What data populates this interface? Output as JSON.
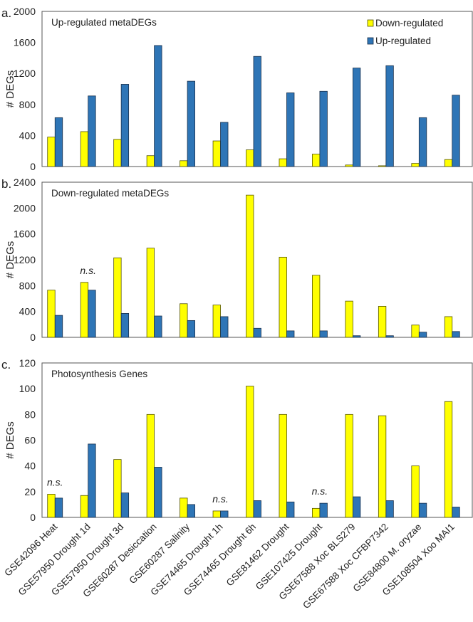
{
  "colors": {
    "down": "#ffff00",
    "up": "#2e75b6",
    "frame": "#555555"
  },
  "legend": {
    "down_label": "Down-regulated",
    "up_label": "Up-regulated",
    "placement": "top-right"
  },
  "ylabel": "# DEGs",
  "chart_data": [
    {
      "type": "bar",
      "panel_label": "a.",
      "title": "Up-regulated metaDEGs",
      "ylabel": "# DEGs",
      "ylim": [
        0,
        2000
      ],
      "yticks": [
        0,
        400,
        800,
        1200,
        1600,
        2000
      ],
      "categories": [
        "GSE42096 Heat",
        "GSE57950 Drought 1d",
        "GSE57950 Drought 3d",
        "GSE60287 Desiccation",
        "GSE60287 Salinity",
        "GSE74465 Drought 1h",
        "GSE74465 Drought 6h",
        "GSE81462 Drought",
        "GSE107425 Drought",
        "GSE67588 Xoc BLS279",
        "GSE67588 Xoc CFBP7342",
        "GSE84800 M. oryzae",
        "GSE108504 Xoo MAI1"
      ],
      "series": [
        {
          "name": "Down-regulated",
          "values": [
            380,
            450,
            350,
            140,
            75,
            330,
            215,
            100,
            160,
            20,
            10,
            40,
            90
          ]
        },
        {
          "name": "Up-regulated",
          "values": [
            630,
            910,
            1060,
            1560,
            1100,
            570,
            1420,
            950,
            970,
            1270,
            1300,
            630,
            920
          ]
        }
      ],
      "annotations": []
    },
    {
      "type": "bar",
      "panel_label": "b.",
      "title": "Down-regulated metaDEGs",
      "ylabel": "# DEGs",
      "ylim": [
        0,
        2400
      ],
      "yticks": [
        0,
        400,
        800,
        1200,
        1600,
        2000,
        2400
      ],
      "categories": [
        "GSE42096 Heat",
        "GSE57950 Drought 1d",
        "GSE57950 Drought 3d",
        "GSE60287 Desiccation",
        "GSE60287 Salinity",
        "GSE74465 Drought 1h",
        "GSE74465 Drought 6h",
        "GSE81462 Drought",
        "GSE107425 Drought",
        "GSE67588 Xoc BLS279",
        "GSE67588 Xoc CFBP7342",
        "GSE84800 M. oryzae",
        "GSE108504 Xoo MAI1"
      ],
      "series": [
        {
          "name": "Down-regulated",
          "values": [
            730,
            850,
            1230,
            1380,
            520,
            500,
            2200,
            1240,
            960,
            560,
            480,
            190,
            320
          ]
        },
        {
          "name": "Up-regulated",
          "values": [
            340,
            730,
            370,
            330,
            260,
            320,
            140,
            100,
            100,
            25,
            25,
            80,
            90
          ]
        }
      ],
      "annotations": [
        {
          "category_index": 1,
          "text": "n.s."
        }
      ]
    },
    {
      "type": "bar",
      "panel_label": "c.",
      "title": "Photosynthesis Genes",
      "ylabel": "# DEGs",
      "ylim": [
        0,
        120
      ],
      "yticks": [
        0,
        20,
        40,
        60,
        80,
        100,
        120
      ],
      "categories": [
        "GSE42096 Heat",
        "GSE57950 Drought 1d",
        "GSE57950 Drought 3d",
        "GSE60287 Desiccation",
        "GSE60287 Salinity",
        "GSE74465 Drought 1h",
        "GSE74465 Drought 6h",
        "GSE81462 Drought",
        "GSE107425 Drought",
        "GSE67588 Xoc BLS279",
        "GSE67588 Xoc CFBP7342",
        "GSE84800 M. oryzae",
        "GSE108504 Xoo MAI1"
      ],
      "series": [
        {
          "name": "Down-regulated",
          "values": [
            18,
            17,
            45,
            80,
            15,
            5,
            102,
            80,
            7,
            80,
            79,
            40,
            90
          ]
        },
        {
          "name": "Up-regulated",
          "values": [
            15,
            57,
            19,
            39,
            10,
            5,
            13,
            12,
            11,
            16,
            13,
            11,
            8
          ]
        }
      ],
      "annotations": [
        {
          "category_index": 0,
          "text": "n.s."
        },
        {
          "category_index": 5,
          "text": "n.s."
        },
        {
          "category_index": 8,
          "text": "n.s."
        }
      ],
      "show_xlabels": true
    }
  ]
}
